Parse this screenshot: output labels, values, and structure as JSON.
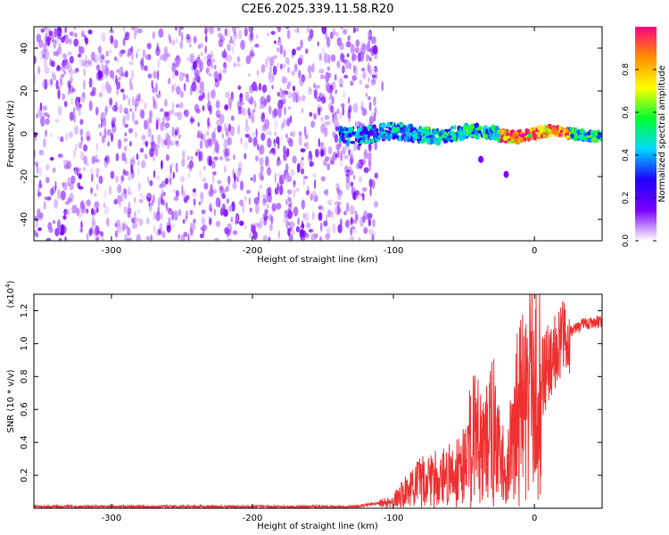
{
  "figure_title": "C2E6.2025.339.11.58.R20",
  "chart_data": [
    {
      "type": "heatmap",
      "title": "C2E6.2025.339.11.58.R20",
      "xlabel": "Height of straight line (km)",
      "ylabel": "Frequency (Hz)",
      "xlim": [
        -355,
        48
      ],
      "ylim": [
        -50,
        50
      ],
      "xticks": [
        -300,
        -200,
        -100,
        0
      ],
      "xtick_labels": [
        "-300",
        "-200",
        "-100",
        "0"
      ],
      "yticks": [
        -40,
        -20,
        0,
        20,
        40
      ],
      "ytick_labels": [
        "-40",
        "-20",
        "0",
        "20",
        "40"
      ],
      "noise_region_x": [
        -355,
        -112
      ],
      "signal_band": {
        "x_start": -138,
        "x_end": 48,
        "center_freq_hz": 0,
        "approx_halfwidth_hz": [
          4,
          2
        ],
        "peak_amplitude_region_x": [
          -25,
          25
        ]
      },
      "isolated_features": [
        {
          "x": -20,
          "y": -19,
          "label": "blob"
        },
        {
          "x": -38,
          "y": -12,
          "label": "blob"
        }
      ],
      "colorbar": {
        "label": "Normalized spectral amplitude",
        "range": [
          0.0,
          1.0
        ],
        "ticks": [
          0.0,
          0.2,
          0.4,
          0.6,
          0.8
        ],
        "tick_labels": [
          "0.0",
          "0.2",
          "0.4",
          "0.6",
          "0.8"
        ],
        "colormap": [
          "#ffffff",
          "#7a00ff",
          "#1f00ff",
          "#00d8ff",
          "#00ff30",
          "#ffff00",
          "#ff9000",
          "#ff0080"
        ]
      }
    },
    {
      "type": "line",
      "xlabel": "Height of straight line (km)",
      "ylabel": "SNR (10 * v/v)",
      "y_multiplier": "(x10",
      "y_multiplier_exp": "4",
      "y_multiplier_close": ")",
      "xlim": [
        -355,
        48
      ],
      "ylim": [
        0,
        1.3
      ],
      "xticks": [
        -300,
        -200,
        -100,
        0
      ],
      "xtick_labels": [
        "-300",
        "-200",
        "-100",
        "0"
      ],
      "yticks": [
        0.2,
        0.4,
        0.6,
        0.8,
        1.0,
        1.2
      ],
      "ytick_labels": [
        "0.2",
        "0.4",
        "0.6",
        "0.8",
        "1.0",
        "1.2"
      ],
      "series": [
        {
          "name": "SNR",
          "color": "#ee3030",
          "x": [
            -355,
            -300,
            -200,
            -130,
            -110,
            -100,
            -90,
            -80,
            -70,
            -60,
            -50,
            -45,
            -40,
            -35,
            -30,
            -25,
            -20,
            -15,
            -10,
            -5,
            0,
            5,
            10,
            15,
            20,
            25,
            30,
            35,
            40,
            48
          ],
          "y": [
            0.01,
            0.01,
            0.01,
            0.01,
            0.03,
            0.05,
            0.12,
            0.18,
            0.2,
            0.22,
            0.3,
            0.45,
            0.55,
            0.4,
            0.55,
            0.35,
            0.25,
            0.45,
            0.7,
            0.75,
            0.85,
            0.8,
            0.92,
            1.0,
            1.05,
            1.08,
            1.1,
            1.12,
            1.13,
            1.14
          ]
        }
      ]
    }
  ]
}
